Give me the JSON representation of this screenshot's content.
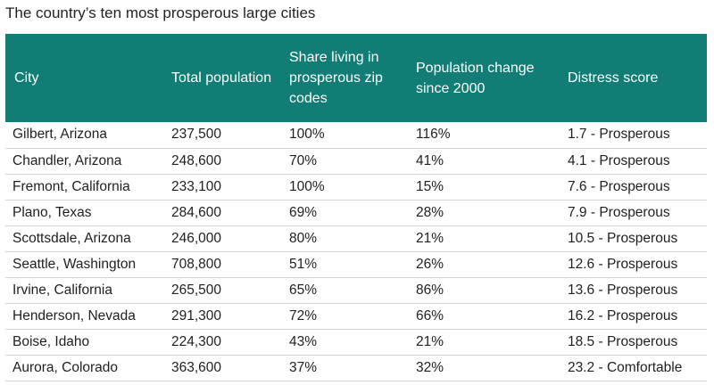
{
  "title": "The country’s ten most prosperous large cities",
  "columns": [
    "City",
    "Total population",
    "Share living in prosperous zip codes",
    "Population change since 2000",
    "Distress score"
  ],
  "rows": [
    [
      "Gilbert, Arizona",
      "237,500",
      "100%",
      "116%",
      "1.7 - Prosperous"
    ],
    [
      "Chandler, Arizona",
      "248,600",
      "70%",
      "41%",
      "4.1 - Prosperous"
    ],
    [
      "Fremont, California",
      "233,100",
      "100%",
      "15%",
      "7.6 - Prosperous"
    ],
    [
      "Plano, Texas",
      "284,600",
      "69%",
      "28%",
      "7.9 - Prosperous"
    ],
    [
      "Scottsdale, Arizona",
      "246,000",
      "80%",
      "21%",
      "10.5 - Prosperous"
    ],
    [
      "Seattle, Washington",
      "708,800",
      "51%",
      "26%",
      "12.6 - Prosperous"
    ],
    [
      "Irvine, California",
      "265,500",
      "65%",
      "86%",
      "13.6 - Prosperous"
    ],
    [
      "Henderson, Nevada",
      "291,300",
      "72%",
      "66%",
      "16.2 - Prosperous"
    ],
    [
      "Boise, Idaho",
      "224,300",
      "43%",
      "21%",
      "18.5 - Prosperous"
    ],
    [
      "Aurora, Colorado",
      "363,600",
      "37%",
      "32%",
      "23.2 - Comfortable"
    ]
  ],
  "colors": {
    "header_bg": "#117d74",
    "header_text": "#ffffff",
    "row_divider": "#cfd8d6"
  }
}
